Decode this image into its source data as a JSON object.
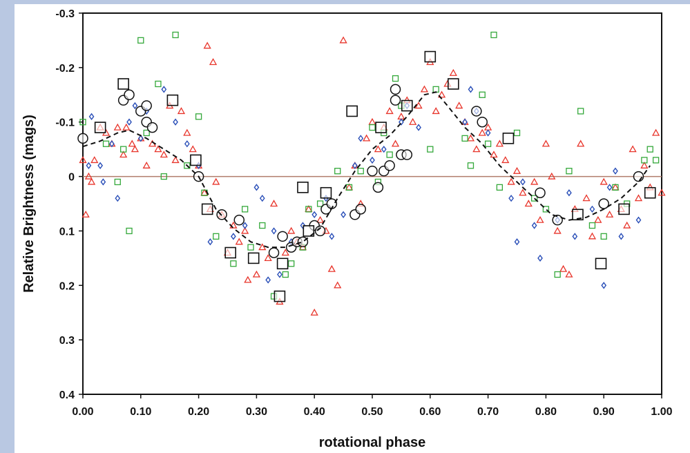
{
  "chart_data": {
    "type": "scatter",
    "title": "",
    "xlabel": "rotational phase",
    "ylabel": "Relative Brightness (mags)",
    "xlim": [
      0.0,
      1.0
    ],
    "ylim": [
      0.4,
      -0.3
    ],
    "y_inverted": true,
    "grid": false,
    "x_ticks": [
      "0.00",
      "0.10",
      "0.20",
      "0.30",
      "0.40",
      "0.50",
      "0.60",
      "0.70",
      "0.80",
      "0.90",
      "1.00"
    ],
    "y_ticks": [
      "-0.3",
      "-0.2",
      "-0.1",
      "0",
      "0.1",
      "0.2",
      "0.3",
      "0.4"
    ],
    "reference_line": {
      "y": 0,
      "color": "#b07b6a"
    },
    "colors": {
      "red": "#e8342a",
      "blue": "#2a4fb8",
      "green": "#34a83a",
      "black": "#111111",
      "frame": "#b9c8e2"
    },
    "series": [
      {
        "marker": "triangle",
        "color": "#e8342a",
        "points": [
          [
            0.0,
            -0.03
          ],
          [
            0.005,
            0.07
          ],
          [
            0.01,
            0.0
          ],
          [
            0.015,
            0.01
          ],
          [
            0.02,
            -0.03
          ],
          [
            0.03,
            -0.09
          ],
          [
            0.04,
            -0.08
          ],
          [
            0.05,
            -0.06
          ],
          [
            0.06,
            -0.09
          ],
          [
            0.07,
            -0.04
          ],
          [
            0.075,
            -0.09
          ],
          [
            0.085,
            -0.06
          ],
          [
            0.09,
            -0.05
          ],
          [
            0.1,
            -0.07
          ],
          [
            0.11,
            -0.02
          ],
          [
            0.12,
            -0.06
          ],
          [
            0.13,
            -0.05
          ],
          [
            0.14,
            -0.04
          ],
          [
            0.15,
            -0.13
          ],
          [
            0.16,
            -0.03
          ],
          [
            0.17,
            -0.12
          ],
          [
            0.18,
            -0.08
          ],
          [
            0.19,
            -0.05
          ],
          [
            0.2,
            -0.02
          ],
          [
            0.21,
            0.03
          ],
          [
            0.215,
            -0.24
          ],
          [
            0.22,
            0.06
          ],
          [
            0.225,
            -0.21
          ],
          [
            0.23,
            0.01
          ],
          [
            0.24,
            0.07
          ],
          [
            0.25,
            0.14
          ],
          [
            0.26,
            0.09
          ],
          [
            0.27,
            0.12
          ],
          [
            0.28,
            0.1
          ],
          [
            0.285,
            0.19
          ],
          [
            0.3,
            0.18
          ],
          [
            0.31,
            0.13
          ],
          [
            0.32,
            0.15
          ],
          [
            0.33,
            0.05
          ],
          [
            0.34,
            0.23
          ],
          [
            0.35,
            0.14
          ],
          [
            0.36,
            0.1
          ],
          [
            0.37,
            0.12
          ],
          [
            0.38,
            0.13
          ],
          [
            0.39,
            0.06
          ],
          [
            0.4,
            0.25
          ],
          [
            0.41,
            0.08
          ],
          [
            0.42,
            0.1
          ],
          [
            0.43,
            0.17
          ],
          [
            0.44,
            0.2
          ],
          [
            0.45,
            -0.25
          ],
          [
            0.46,
            0.02
          ],
          [
            0.47,
            -0.02
          ],
          [
            0.48,
            0.05
          ],
          [
            0.49,
            -0.07
          ],
          [
            0.5,
            -0.1
          ],
          [
            0.51,
            -0.05
          ],
          [
            0.52,
            -0.09
          ],
          [
            0.53,
            -0.12
          ],
          [
            0.54,
            -0.06
          ],
          [
            0.55,
            -0.11
          ],
          [
            0.56,
            -0.14
          ],
          [
            0.57,
            -0.1
          ],
          [
            0.58,
            -0.13
          ],
          [
            0.59,
            -0.16
          ],
          [
            0.6,
            -0.21
          ],
          [
            0.61,
            -0.12
          ],
          [
            0.62,
            -0.15
          ],
          [
            0.63,
            -0.17
          ],
          [
            0.64,
            -0.19
          ],
          [
            0.65,
            -0.13
          ],
          [
            0.66,
            -0.1
          ],
          [
            0.67,
            -0.07
          ],
          [
            0.68,
            -0.05
          ],
          [
            0.69,
            -0.08
          ],
          [
            0.7,
            -0.09
          ],
          [
            0.71,
            -0.04
          ],
          [
            0.72,
            -0.06
          ],
          [
            0.73,
            -0.03
          ],
          [
            0.74,
            0.01
          ],
          [
            0.75,
            -0.01
          ],
          [
            0.76,
            0.03
          ],
          [
            0.77,
            0.05
          ],
          [
            0.78,
            0.01
          ],
          [
            0.79,
            0.08
          ],
          [
            0.8,
            -0.06
          ],
          [
            0.81,
            0.0
          ],
          [
            0.82,
            0.1
          ],
          [
            0.83,
            0.17
          ],
          [
            0.84,
            0.18
          ],
          [
            0.85,
            0.06
          ],
          [
            0.86,
            -0.06
          ],
          [
            0.87,
            0.04
          ],
          [
            0.88,
            0.11
          ],
          [
            0.89,
            0.08
          ],
          [
            0.9,
            0.01
          ],
          [
            0.91,
            0.07
          ],
          [
            0.92,
            0.02
          ],
          [
            0.93,
            0.06
          ],
          [
            0.94,
            0.09
          ],
          [
            0.95,
            -0.05
          ],
          [
            0.96,
            0.04
          ],
          [
            0.97,
            -0.02
          ],
          [
            0.98,
            0.02
          ],
          [
            0.99,
            -0.08
          ],
          [
            1.0,
            0.03
          ]
        ]
      },
      {
        "marker": "diamond",
        "color": "#2a4fb8",
        "points": [
          [
            0.01,
            -0.02
          ],
          [
            0.015,
            -0.11
          ],
          [
            0.03,
            -0.02
          ],
          [
            0.035,
            0.01
          ],
          [
            0.05,
            -0.06
          ],
          [
            0.06,
            0.04
          ],
          [
            0.08,
            -0.1
          ],
          [
            0.09,
            -0.13
          ],
          [
            0.1,
            -0.07
          ],
          [
            0.11,
            -0.12
          ],
          [
            0.14,
            -0.16
          ],
          [
            0.16,
            -0.1
          ],
          [
            0.18,
            -0.06
          ],
          [
            0.2,
            -0.02
          ],
          [
            0.22,
            0.12
          ],
          [
            0.26,
            0.11
          ],
          [
            0.28,
            0.09
          ],
          [
            0.3,
            0.02
          ],
          [
            0.31,
            0.04
          ],
          [
            0.32,
            0.19
          ],
          [
            0.33,
            0.1
          ],
          [
            0.34,
            0.18
          ],
          [
            0.36,
            0.12
          ],
          [
            0.38,
            0.09
          ],
          [
            0.4,
            0.07
          ],
          [
            0.42,
            0.04
          ],
          [
            0.43,
            0.11
          ],
          [
            0.45,
            0.07
          ],
          [
            0.47,
            -0.02
          ],
          [
            0.48,
            -0.07
          ],
          [
            0.5,
            -0.03
          ],
          [
            0.52,
            -0.05
          ],
          [
            0.55,
            -0.1
          ],
          [
            0.56,
            -0.13
          ],
          [
            0.58,
            -0.09
          ],
          [
            0.66,
            -0.1
          ],
          [
            0.67,
            -0.16
          ],
          [
            0.68,
            -0.12
          ],
          [
            0.7,
            -0.08
          ],
          [
            0.74,
            0.04
          ],
          [
            0.75,
            0.12
          ],
          [
            0.76,
            0.01
          ],
          [
            0.78,
            0.09
          ],
          [
            0.79,
            0.15
          ],
          [
            0.82,
            0.08
          ],
          [
            0.84,
            0.03
          ],
          [
            0.85,
            0.11
          ],
          [
            0.88,
            0.06
          ],
          [
            0.9,
            0.2
          ],
          [
            0.91,
            0.02
          ],
          [
            0.92,
            -0.01
          ],
          [
            0.93,
            0.11
          ],
          [
            0.96,
            0.08
          ]
        ]
      },
      {
        "marker": "square",
        "color": "#34a83a",
        "points": [
          [
            0.0,
            -0.1
          ],
          [
            0.04,
            -0.06
          ],
          [
            0.06,
            0.01
          ],
          [
            0.07,
            -0.05
          ],
          [
            0.08,
            0.1
          ],
          [
            0.1,
            -0.25
          ],
          [
            0.11,
            -0.08
          ],
          [
            0.13,
            -0.17
          ],
          [
            0.14,
            0.0
          ],
          [
            0.16,
            -0.26
          ],
          [
            0.18,
            -0.02
          ],
          [
            0.2,
            -0.11
          ],
          [
            0.21,
            0.03
          ],
          [
            0.23,
            0.11
          ],
          [
            0.26,
            0.16
          ],
          [
            0.28,
            0.06
          ],
          [
            0.29,
            0.13
          ],
          [
            0.31,
            0.09
          ],
          [
            0.33,
            0.22
          ],
          [
            0.35,
            0.18
          ],
          [
            0.36,
            0.16
          ],
          [
            0.38,
            0.13
          ],
          [
            0.39,
            0.06
          ],
          [
            0.41,
            0.05
          ],
          [
            0.44,
            -0.01
          ],
          [
            0.46,
            0.02
          ],
          [
            0.48,
            -0.01
          ],
          [
            0.5,
            -0.09
          ],
          [
            0.51,
            0.01
          ],
          [
            0.52,
            -0.08
          ],
          [
            0.53,
            -0.04
          ],
          [
            0.54,
            -0.18
          ],
          [
            0.55,
            -0.13
          ],
          [
            0.6,
            -0.05
          ],
          [
            0.61,
            -0.16
          ],
          [
            0.66,
            -0.07
          ],
          [
            0.67,
            -0.02
          ],
          [
            0.69,
            -0.15
          ],
          [
            0.7,
            -0.06
          ],
          [
            0.71,
            -0.26
          ],
          [
            0.72,
            0.02
          ],
          [
            0.75,
            -0.08
          ],
          [
            0.78,
            0.04
          ],
          [
            0.8,
            0.06
          ],
          [
            0.82,
            0.18
          ],
          [
            0.84,
            -0.01
          ],
          [
            0.86,
            -0.12
          ],
          [
            0.88,
            0.09
          ],
          [
            0.9,
            0.11
          ],
          [
            0.92,
            0.02
          ],
          [
            0.94,
            0.05
          ],
          [
            0.97,
            -0.03
          ],
          [
            0.98,
            -0.05
          ],
          [
            0.99,
            -0.03
          ]
        ]
      },
      {
        "marker": "circle",
        "color": "#111111",
        "points": [
          [
            0.0,
            -0.07
          ],
          [
            0.07,
            -0.14
          ],
          [
            0.08,
            -0.15
          ],
          [
            0.1,
            -0.12
          ],
          [
            0.11,
            -0.13
          ],
          [
            0.11,
            -0.1
          ],
          [
            0.12,
            -0.09
          ],
          [
            0.2,
            0.0
          ],
          [
            0.24,
            0.07
          ],
          [
            0.27,
            0.08
          ],
          [
            0.33,
            0.14
          ],
          [
            0.345,
            0.11
          ],
          [
            0.36,
            0.13
          ],
          [
            0.37,
            0.12
          ],
          [
            0.38,
            0.12
          ],
          [
            0.4,
            0.09
          ],
          [
            0.41,
            0.1
          ],
          [
            0.42,
            0.06
          ],
          [
            0.43,
            0.05
          ],
          [
            0.47,
            0.07
          ],
          [
            0.48,
            0.06
          ],
          [
            0.5,
            -0.01
          ],
          [
            0.51,
            0.02
          ],
          [
            0.52,
            -0.01
          ],
          [
            0.53,
            -0.02
          ],
          [
            0.54,
            -0.16
          ],
          [
            0.54,
            -0.14
          ],
          [
            0.55,
            -0.04
          ],
          [
            0.56,
            -0.04
          ],
          [
            0.68,
            -0.12
          ],
          [
            0.69,
            -0.1
          ],
          [
            0.79,
            0.03
          ],
          [
            0.82,
            0.08
          ],
          [
            0.9,
            0.05
          ],
          [
            0.96,
            0.0
          ]
        ]
      },
      {
        "marker": "open-square",
        "color": "#111111",
        "points": [
          [
            0.03,
            -0.09
          ],
          [
            0.07,
            -0.17
          ],
          [
            0.155,
            -0.14
          ],
          [
            0.195,
            -0.03
          ],
          [
            0.215,
            0.06
          ],
          [
            0.255,
            0.14
          ],
          [
            0.295,
            0.15
          ],
          [
            0.34,
            0.22
          ],
          [
            0.345,
            0.16
          ],
          [
            0.38,
            0.02
          ],
          [
            0.39,
            0.1
          ],
          [
            0.42,
            0.03
          ],
          [
            0.465,
            -0.12
          ],
          [
            0.515,
            -0.09
          ],
          [
            0.56,
            -0.13
          ],
          [
            0.6,
            -0.22
          ],
          [
            0.64,
            -0.17
          ],
          [
            0.735,
            -0.07
          ],
          [
            0.855,
            0.07
          ],
          [
            0.895,
            0.16
          ],
          [
            0.935,
            0.06
          ],
          [
            0.98,
            0.03
          ]
        ]
      },
      {
        "marker": "line-dashed",
        "color": "#111111",
        "points": [
          [
            0.0,
            -0.055
          ],
          [
            0.03,
            -0.065
          ],
          [
            0.06,
            -0.08
          ],
          [
            0.08,
            -0.085
          ],
          [
            0.11,
            -0.07
          ],
          [
            0.14,
            -0.05
          ],
          [
            0.17,
            -0.03
          ],
          [
            0.2,
            0.0
          ],
          [
            0.23,
            0.06
          ],
          [
            0.26,
            0.095
          ],
          [
            0.29,
            0.12
          ],
          [
            0.32,
            0.13
          ],
          [
            0.35,
            0.13
          ],
          [
            0.38,
            0.12
          ],
          [
            0.41,
            0.095
          ],
          [
            0.44,
            0.04
          ],
          [
            0.47,
            -0.01
          ],
          [
            0.5,
            -0.05
          ],
          [
            0.53,
            -0.075
          ],
          [
            0.56,
            -0.11
          ],
          [
            0.59,
            -0.15
          ],
          [
            0.61,
            -0.155
          ],
          [
            0.63,
            -0.13
          ],
          [
            0.66,
            -0.09
          ],
          [
            0.69,
            -0.06
          ],
          [
            0.72,
            -0.02
          ],
          [
            0.75,
            0.01
          ],
          [
            0.78,
            0.04
          ],
          [
            0.81,
            0.07
          ],
          [
            0.84,
            0.08
          ],
          [
            0.87,
            0.075
          ],
          [
            0.9,
            0.06
          ],
          [
            0.93,
            0.04
          ],
          [
            0.96,
            0.01
          ],
          [
            0.98,
            -0.02
          ]
        ]
      }
    ]
  }
}
